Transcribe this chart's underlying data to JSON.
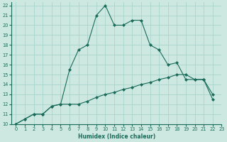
{
  "xlabel": "Humidex (Indice chaleur)",
  "bg_color": "#cce8e0",
  "grid_color": "#a8d4cc",
  "line_color": "#1a6b5a",
  "xlim": [
    -0.5,
    23
  ],
  "ylim": [
    10,
    22.3
  ],
  "xticks": [
    0,
    1,
    2,
    3,
    4,
    5,
    6,
    7,
    8,
    9,
    10,
    11,
    12,
    13,
    14,
    15,
    16,
    17,
    18,
    19,
    20,
    21,
    22,
    23
  ],
  "yticks": [
    10,
    11,
    12,
    13,
    14,
    15,
    16,
    17,
    18,
    19,
    20,
    21,
    22
  ],
  "curve_upper_x": [
    0,
    1,
    2,
    3,
    4,
    5,
    6,
    7,
    8,
    9,
    10,
    11,
    12,
    13,
    14,
    15,
    16,
    17,
    18,
    19,
    20,
    21,
    22
  ],
  "curve_upper_y": [
    10,
    10.5,
    11.0,
    11.0,
    11.8,
    12.0,
    15.5,
    17.5,
    18.0,
    21.0,
    22.0,
    20.0,
    20.0,
    20.5,
    20.5,
    18.0,
    17.5,
    16.0,
    16.2,
    14.5,
    14.5,
    14.5,
    13.0
  ],
  "curve_lower_x": [
    0,
    1,
    2,
    3,
    4,
    5,
    6,
    7,
    8,
    9,
    10,
    11,
    12,
    13,
    14,
    15,
    16,
    17,
    18,
    19,
    20,
    21,
    22
  ],
  "curve_lower_y": [
    10,
    10.5,
    11.0,
    11.0,
    11.8,
    12.0,
    12.0,
    12.0,
    12.3,
    12.7,
    13.0,
    13.2,
    13.5,
    13.7,
    14.0,
    14.2,
    14.5,
    14.7,
    15.0,
    15.0,
    14.5,
    14.5,
    12.5
  ]
}
